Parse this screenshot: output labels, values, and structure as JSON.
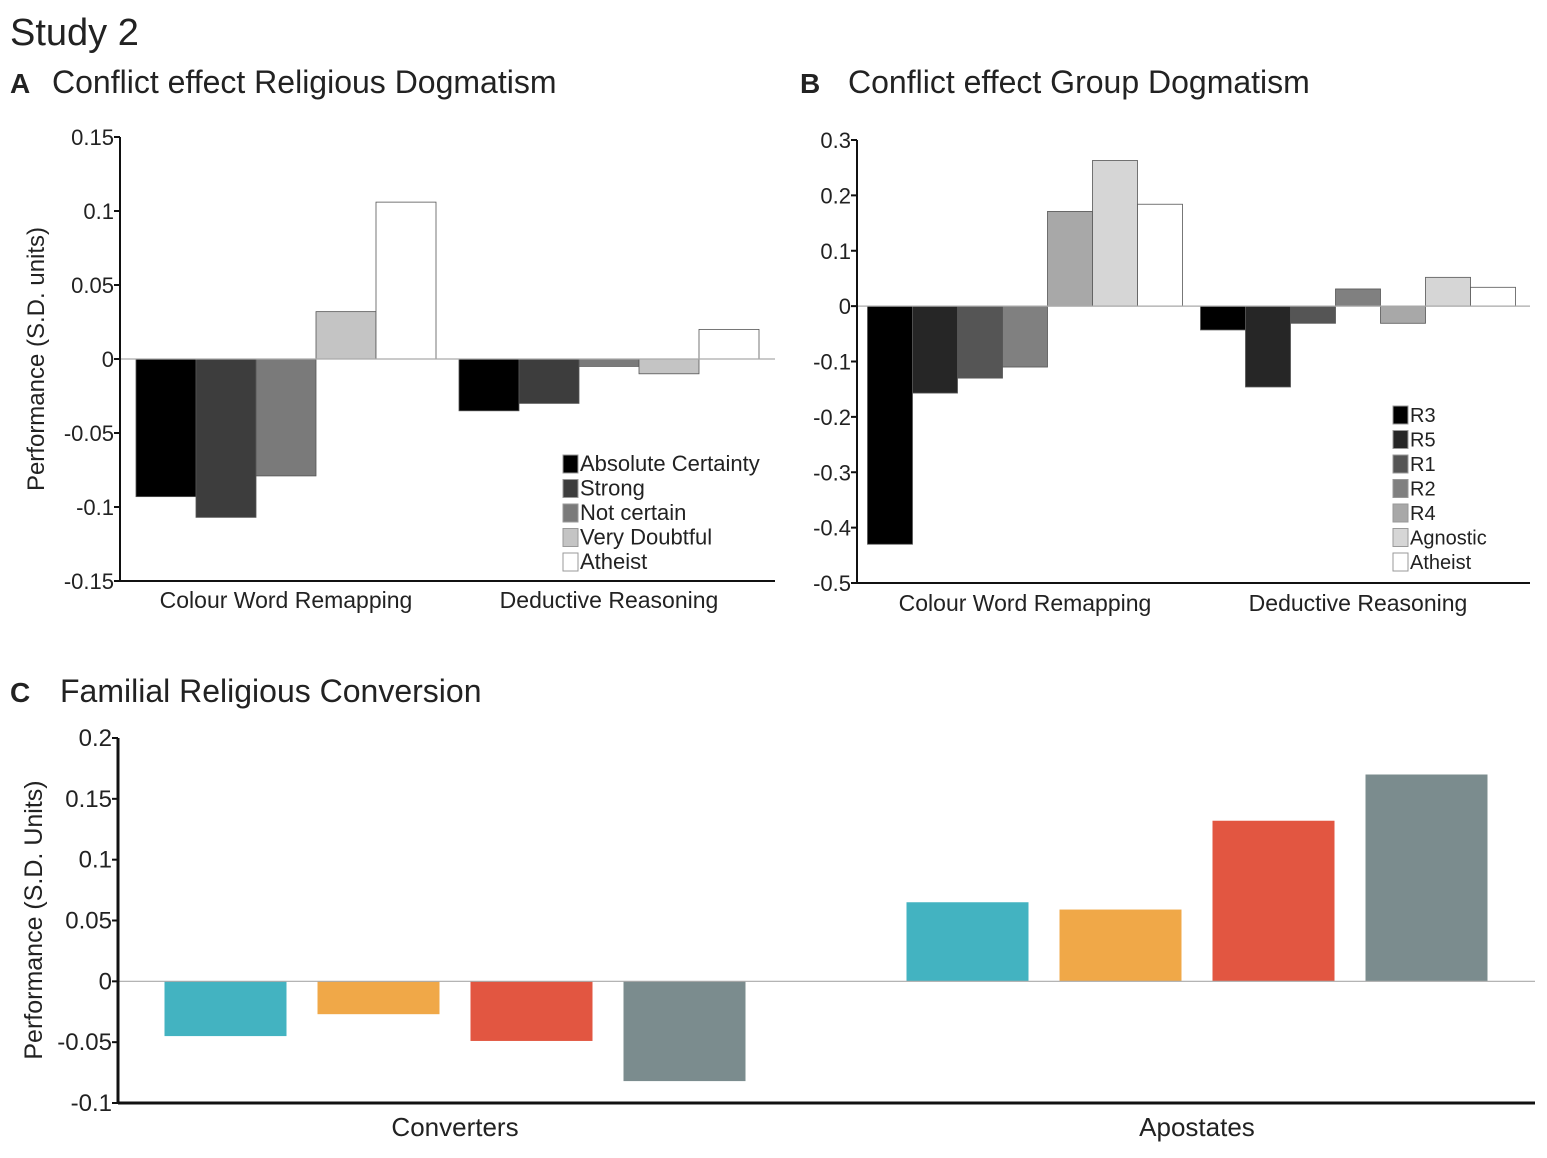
{
  "figure_title": "Study 2",
  "chart_data": [
    {
      "panel": "A",
      "type": "bar",
      "title": "Conflict effect Religious Dogmatism",
      "xlabel": "",
      "ylabel": "Performance (S.D. units)",
      "ylim": [
        -0.15,
        0.15
      ],
      "yticks": [
        0.15,
        0.1,
        0.05,
        0,
        -0.05,
        -0.1,
        -0.15
      ],
      "ytick_labels": [
        "0.15",
        "0.1",
        "0.05",
        "0",
        "-0.05",
        "-0.1",
        "-0.15"
      ],
      "categories": [
        "Colour Word Remapping",
        "Deductive Reasoning"
      ],
      "legend_position": "bottom-right",
      "series": [
        {
          "name": "Absolute Certainty",
          "color": "#000000",
          "values": [
            -0.093,
            -0.035
          ]
        },
        {
          "name": "Strong",
          "color": "#3d3d3d",
          "values": [
            -0.107,
            -0.03
          ]
        },
        {
          "name": "Not certain",
          "color": "#7a7a7a",
          "values": [
            -0.079,
            -0.005
          ]
        },
        {
          "name": "Very Doubtful",
          "color": "#c4c4c4",
          "values": [
            0.032,
            -0.01
          ]
        },
        {
          "name": "Atheist",
          "color": "#ffffff",
          "values": [
            0.106,
            0.02
          ]
        }
      ]
    },
    {
      "panel": "B",
      "type": "bar",
      "title": "Conflict effect Group Dogmatism",
      "xlabel": "",
      "ylabel": "",
      "ylim": [
        -0.5,
        0.3
      ],
      "yticks": [
        0.3,
        0.2,
        0.1,
        0,
        -0.1,
        -0.2,
        -0.3,
        -0.4,
        -0.5
      ],
      "ytick_labels": [
        "0.3",
        "0.2",
        "0.1",
        "0",
        "-0.1",
        "-0.2",
        "-0.3",
        "-0.4",
        "-0.5"
      ],
      "categories": [
        "Colour Word Remapping",
        "Deductive Reasoning"
      ],
      "legend_position": "bottom-right",
      "series": [
        {
          "name": "R3",
          "color": "#000000",
          "values": [
            -0.43,
            -0.043
          ]
        },
        {
          "name": "R5",
          "color": "#262626",
          "values": [
            -0.157,
            -0.146
          ]
        },
        {
          "name": "R1",
          "color": "#555555",
          "values": [
            -0.13,
            -0.031
          ]
        },
        {
          "name": "R2",
          "color": "#808080",
          "values": [
            -0.11,
            0.031
          ]
        },
        {
          "name": "R4",
          "color": "#a8a8a8",
          "values": [
            0.171,
            -0.031
          ]
        },
        {
          "name": "Agnostic",
          "color": "#d6d6d6",
          "values": [
            0.263,
            0.052
          ]
        },
        {
          "name": "Atheist",
          "color": "#ffffff",
          "values": [
            0.184,
            0.034
          ]
        }
      ]
    },
    {
      "panel": "C",
      "type": "bar",
      "title": "Familial Religious Conversion",
      "xlabel": "",
      "ylabel": "Performance (S.D. Units)",
      "ylim": [
        -0.1,
        0.2
      ],
      "yticks": [
        0.2,
        0.15,
        0.1,
        0.05,
        0,
        -0.05,
        -0.1
      ],
      "ytick_labels": [
        "0.2",
        "0.15",
        "0.1",
        "0.05",
        "0",
        "-0.05",
        "-0.1"
      ],
      "categories": [
        "Converters",
        "Apostates"
      ],
      "series": [
        {
          "name": "",
          "color": "#43b3c1",
          "values": [
            -0.045,
            0.065
          ]
        },
        {
          "name": "",
          "color": "#f0a848",
          "values": [
            -0.027,
            0.059
          ]
        },
        {
          "name": "",
          "color": "#e25641",
          "values": [
            -0.049,
            0.132
          ]
        },
        {
          "name": "",
          "color": "#7b8c8e",
          "values": [
            -0.082,
            0.17
          ]
        }
      ]
    }
  ]
}
